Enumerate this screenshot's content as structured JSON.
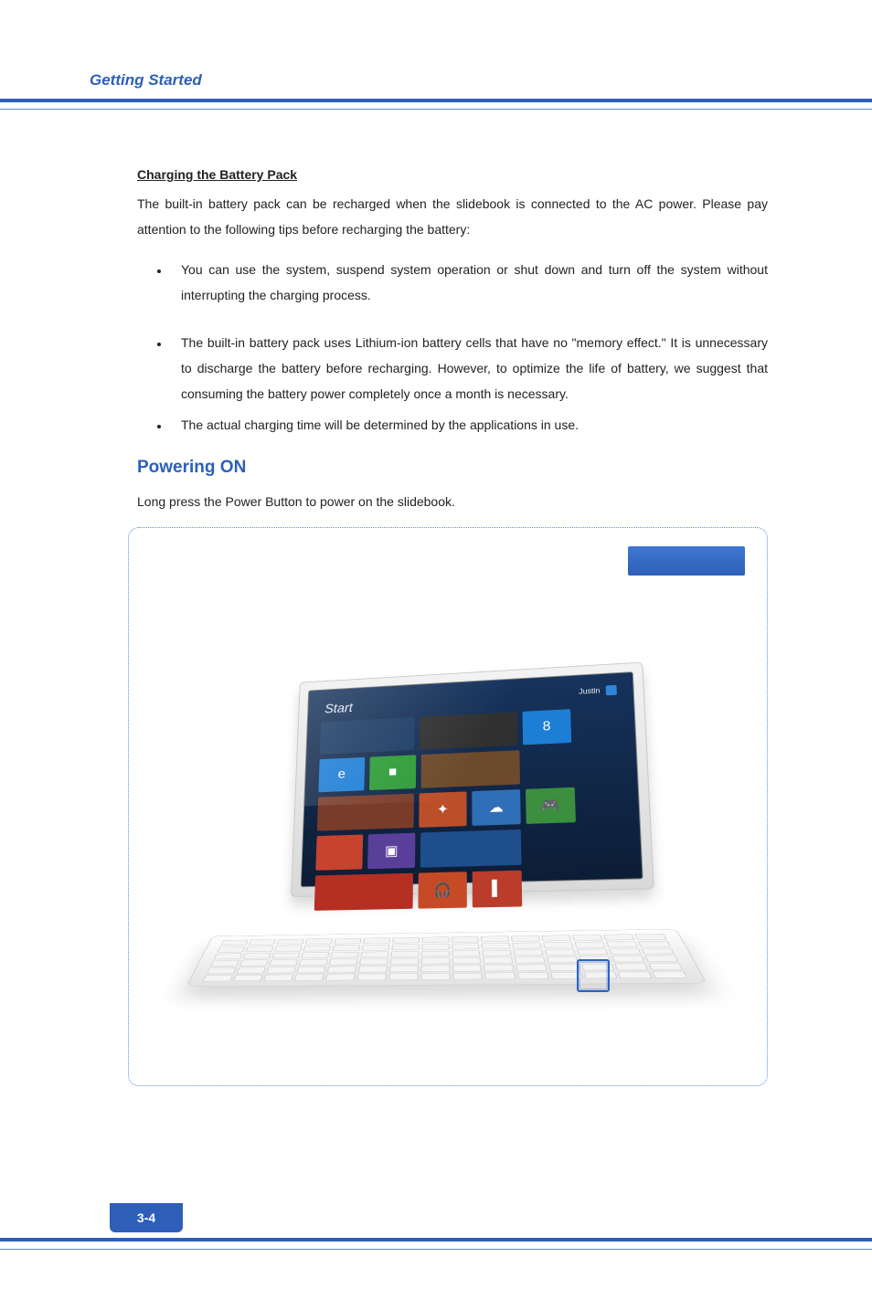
{
  "colors": {
    "brand_blue": "#2d5fb8",
    "brand_blue_light": "#3f77d0",
    "rule_thin": "#5c86cf",
    "illus_border": "#5a8fd6",
    "text": "#222222",
    "footer_pill_bg": "#2d5fb8",
    "screen_dark": "#0c1d36",
    "screen_dark2": "#16335c"
  },
  "typography": {
    "header_title_pt": 17,
    "body_pt": 14,
    "subheading_pt": 14,
    "section_h2_pt": 19,
    "footer_pt": 14,
    "line_height": 2.0
  },
  "header": {
    "title": "Getting Started"
  },
  "body": {
    "subheading": "Charging the Battery Pack",
    "intro_para": "The built-in battery pack can be recharged when the slidebook is connected to the AC power.  Please pay attention to the following tips before recharging the battery:",
    "bullets": [
      "You can use the system, suspend system operation or shut down and turn off the system without interrupting the charging process.",
      "The built-in battery pack uses Lithium-ion battery cells that have no \"memory effect.\"  It is unnecessary to discharge the battery before recharging.   However, to optimize the life of battery, we suggest that consuming the battery power completely once a month is necessary.",
      "The actual charging time will be determined by the applications in use."
    ],
    "section_title": "Powering ON",
    "section_para": "Long press the Power Button to power on the slidebook."
  },
  "illustration": {
    "start_label": "Start",
    "user_label": "Justin",
    "tiles": [
      {
        "type": "txt",
        "bg": "#1a3b63"
      },
      {
        "type": "wide",
        "bg": "#303030"
      },
      {
        "type": "sq",
        "bg": "#1d7ed6",
        "glyph": "8"
      },
      {
        "type": "sq",
        "bg": "#1d7ed6",
        "glyph": "e"
      },
      {
        "type": "sq",
        "bg": "#2e9c37",
        "glyph": "■"
      },
      {
        "type": "wide",
        "bg": "#6d4a2b"
      },
      {
        "type": "wide",
        "bg": "#7a3c2a"
      },
      {
        "type": "sq",
        "bg": "#bb4f2a",
        "glyph": "✦"
      },
      {
        "type": "sq",
        "bg": "#2f6fb8",
        "glyph": "☁"
      },
      {
        "type": "sq",
        "bg": "#3b8f3e",
        "glyph": "🎮"
      },
      {
        "type": "sq",
        "bg": "#c7432e"
      },
      {
        "type": "sq",
        "bg": "#5a3f9a",
        "glyph": "▣"
      },
      {
        "type": "wide",
        "bg": "#1f4e8c"
      },
      {
        "type": "wide",
        "bg": "#b62f23"
      },
      {
        "type": "sq",
        "bg": "#c74a27",
        "glyph": "🎧"
      },
      {
        "type": "sq",
        "bg": "#bb3c2b",
        "glyph": "▌"
      }
    ],
    "keyboard_rows": 6,
    "keys_per_row": 15
  },
  "footer": {
    "page_label": "3-4"
  }
}
